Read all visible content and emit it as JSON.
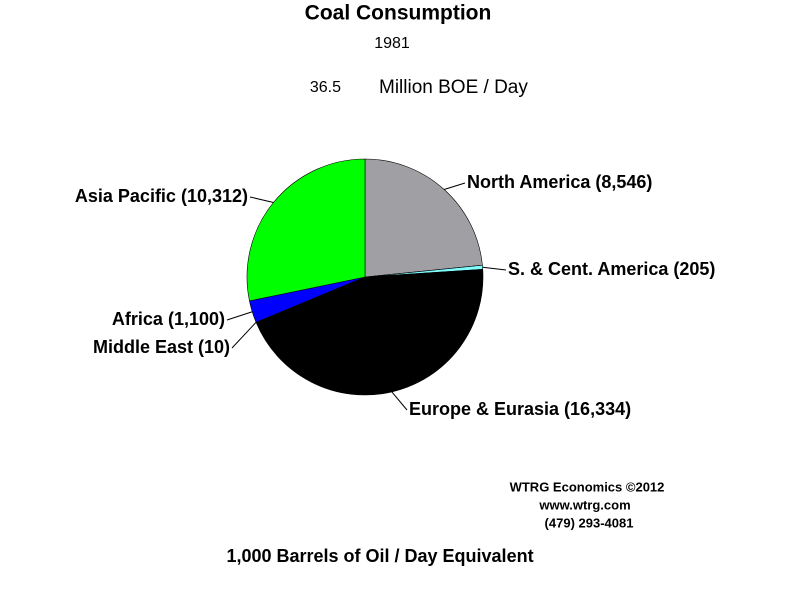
{
  "chart_data": {
    "type": "pie",
    "title": "Coal Consumption",
    "subtitle": "1981",
    "total": 36.5,
    "total_unit": "Million BOE / Day",
    "categories": [
      "North America",
      "S. & Cent. America",
      "Europe & Eurasia",
      "Middle East",
      "Africa",
      "Asia Pacific"
    ],
    "values": [
      8546,
      205,
      16334,
      10,
      1100,
      10312
    ],
    "value_labels": [
      "(8,546)",
      "(205)",
      "(16,334)",
      "(10)",
      "(1,100)",
      "(10,312)"
    ],
    "colors": [
      "#a0a0a4",
      "#80ffff",
      "#000000",
      "#ff0000",
      "#0000ff",
      "#00ff00"
    ],
    "x_label": "1,000 Barrels of Oil / Day Equivalent",
    "credit": [
      "WTRG Economics  ©2012",
      "www.wtrg.com",
      "(479) 293-4081"
    ]
  }
}
